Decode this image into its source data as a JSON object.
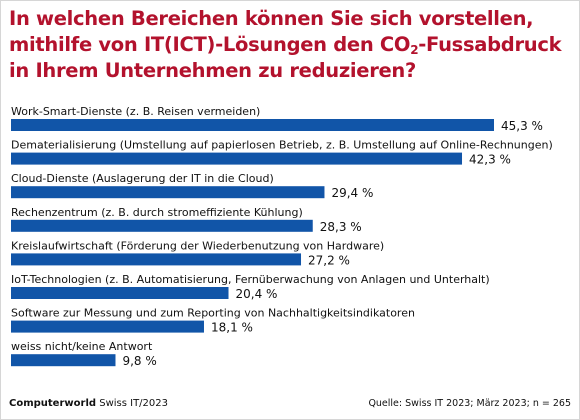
{
  "title_line1": "In welchen Bereichen können Sie sich vorstellen,",
  "title_line2_a": "mithilfe von IT(ICT)-Lösungen den CO",
  "title_line2_sub": "2",
  "title_line2_b": "-Fussabdruck",
  "title_line3": "in Ihrem Unternehmen zu reduzieren?",
  "footer": {
    "brand": "Computerworld",
    "brand_suffix": "Swiss IT/2023",
    "source": "Quelle: Swiss IT 2023; März 2023; n = 265"
  },
  "colors": {
    "bar": "#1155a8",
    "title": "#b3122d"
  },
  "chart_data": {
    "type": "bar",
    "orientation": "horizontal",
    "unit": "%",
    "xlim": [
      0,
      45.3
    ],
    "categories": [
      "Work-Smart-Dienste (z. B. Reisen vermeiden)",
      "Dematerialisierung (Umstellung auf papierlosen Betrieb, z. B. Umstellung auf Online-Rechnungen)",
      "Cloud-Dienste (Auslagerung der IT in die Cloud)",
      "Rechenzentrum (z. B. durch stromeffiziente Kühlung)",
      "Kreislaufwirtschaft (Förderung der Wiederbenutzung von Hardware)",
      "IoT-Technologien (z. B. Automatisierung, Fernüberwachung von Anlagen und Unterhalt)",
      "Software zur Messung und zum Reporting von Nachhaltigkeitsindikatoren",
      "weiss nicht/keine Antwort"
    ],
    "values": [
      45.3,
      42.3,
      29.4,
      28.3,
      27.2,
      20.4,
      18.1,
      9.8
    ],
    "value_labels": [
      "45,3 %",
      "42,3 %",
      "29,4 %",
      "28,3 %",
      "27,2 %",
      "20,4 %",
      "18,1 %",
      "9,8 %"
    ]
  }
}
